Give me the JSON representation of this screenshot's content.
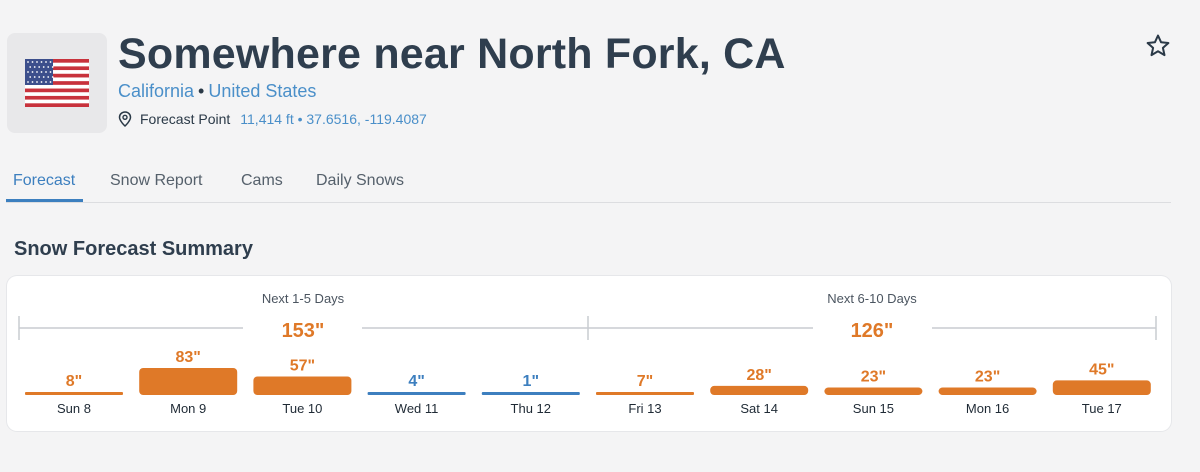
{
  "header": {
    "flag_icon": "us-flag-icon",
    "title": "Somewhere near North Fork, CA",
    "region": "California",
    "separator": "•",
    "country": "United States",
    "pin_icon": "map-pin-icon",
    "forecast_point_label": "Forecast Point",
    "forecast_point_details": "11,414 ft • 37.6516, -119.4087",
    "favorite_icon": "star-outline-icon"
  },
  "tabs": [
    {
      "label": "Forecast",
      "active": true
    },
    {
      "label": "Snow Report",
      "active": false
    },
    {
      "label": "Cams",
      "active": false
    },
    {
      "label": "Daily Snows",
      "active": false
    }
  ],
  "summary": {
    "title": "Snow Forecast Summary",
    "periods": [
      {
        "label": "Next 1-5 Days",
        "total": "153\""
      },
      {
        "label": "Next 6-10 Days",
        "total": "126\""
      }
    ]
  },
  "colors": {
    "snow_orange": "#df7928",
    "light_blue": "#3d7fbf",
    "link_blue": "#4a8fc9"
  },
  "chart_data": {
    "type": "bar",
    "unit": "\"",
    "categories": [
      "Sun 8",
      "Mon 9",
      "Tue 10",
      "Wed 11",
      "Thu 12",
      "Fri 13",
      "Sat 14",
      "Sun 15",
      "Mon 16",
      "Tue 17"
    ],
    "values": [
      8,
      83,
      57,
      4,
      1,
      7,
      28,
      23,
      23,
      45
    ],
    "labels": [
      "8\"",
      "83\"",
      "57\"",
      "4\"",
      "1\"",
      "7\"",
      "28\"",
      "23\"",
      "23\"",
      "45\""
    ],
    "colors": [
      "orange",
      "orange",
      "orange",
      "blue",
      "blue",
      "orange",
      "orange",
      "orange",
      "orange",
      "orange"
    ]
  }
}
